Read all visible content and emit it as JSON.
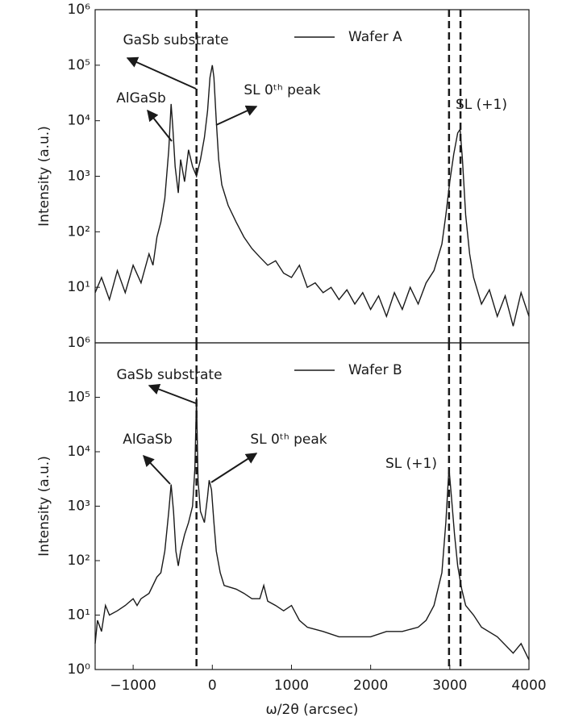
{
  "chart_data": [
    {
      "type": "line",
      "log_y": true,
      "ylabel": "Intensity (a.u.)",
      "xlim": [
        -1480,
        4000
      ],
      "ylim": [
        1,
        1000000
      ],
      "yticks": [
        {
          "value": 10,
          "label": "10¹"
        },
        {
          "value": 100,
          "label": "10²"
        },
        {
          "value": 1000,
          "label": "10³"
        },
        {
          "value": 10000,
          "label": "10⁴"
        },
        {
          "value": 100000,
          "label": "10⁵"
        },
        {
          "value": 1000000,
          "label": "10⁶"
        }
      ],
      "x": [
        -1480,
        -1400,
        -1300,
        -1200,
        -1100,
        -1000,
        -900,
        -800,
        -750,
        -700,
        -650,
        -600,
        -550,
        -520,
        -500,
        -470,
        -430,
        -400,
        -350,
        -300,
        -250,
        -200,
        -150,
        -100,
        -60,
        -30,
        0,
        20,
        50,
        80,
        120,
        200,
        300,
        400,
        500,
        600,
        700,
        800,
        900,
        1000,
        1100,
        1200,
        1300,
        1400,
        1500,
        1600,
        1700,
        1800,
        1900,
        2000,
        2100,
        2200,
        2300,
        2400,
        2500,
        2600,
        2700,
        2800,
        2900,
        2950,
        3000,
        3050,
        3100,
        3130,
        3160,
        3200,
        3250,
        3300,
        3400,
        3500,
        3600,
        3700,
        3800,
        3900,
        4000
      ],
      "series": [
        {
          "name": "Wafer A",
          "color": "#1a1a1a",
          "values": [
            8,
            15,
            6,
            20,
            8,
            25,
            12,
            40,
            25,
            80,
            150,
            400,
            3000,
            20000,
            8000,
            1500,
            500,
            2000,
            800,
            3000,
            1500,
            1000,
            2000,
            5000,
            15000,
            60000,
            100000,
            60000,
            10000,
            2000,
            700,
            300,
            150,
            80,
            50,
            35,
            25,
            30,
            18,
            15,
            25,
            10,
            12,
            8,
            10,
            6,
            9,
            5,
            8,
            4,
            7,
            3,
            8,
            4,
            10,
            5,
            12,
            20,
            60,
            200,
            800,
            2500,
            6000,
            7000,
            2000,
            200,
            40,
            15,
            5,
            9,
            3,
            7,
            2,
            8,
            3
          ]
        }
      ],
      "vlines": [
        -200,
        2990,
        3135
      ],
      "legend": "upper right",
      "annotations": [
        "GaSb substrate",
        "AlGaSb",
        "SL 0ᵗʰ peak",
        "SL (+1)"
      ]
    },
    {
      "type": "line",
      "log_y": true,
      "ylabel": "Intensity (a.u.)",
      "xlabel": "ω/2θ (arcsec)",
      "xlim": [
        -1480,
        4000
      ],
      "ylim": [
        1,
        1000000
      ],
      "xticks": [
        {
          "value": -1000,
          "label": "−1000"
        },
        0,
        1000,
        2000,
        3000,
        4000
      ],
      "yticks": [
        {
          "value": 1,
          "label": "10⁰"
        },
        {
          "value": 10,
          "label": "10¹"
        },
        {
          "value": 100,
          "label": "10²"
        },
        {
          "value": 1000,
          "label": "10³"
        },
        {
          "value": 10000,
          "label": "10⁴"
        },
        {
          "value": 100000,
          "label": "10⁵"
        },
        {
          "value": 1000000,
          "label": "10⁶"
        }
      ],
      "x": [
        -1480,
        -1450,
        -1400,
        -1350,
        -1300,
        -1200,
        -1100,
        -1000,
        -950,
        -900,
        -800,
        -700,
        -650,
        -600,
        -550,
        -520,
        -490,
        -460,
        -430,
        -400,
        -350,
        -300,
        -250,
        -220,
        -200,
        -180,
        -150,
        -100,
        -60,
        -40,
        -10,
        20,
        50,
        100,
        150,
        300,
        400,
        500,
        600,
        650,
        700,
        800,
        900,
        1000,
        1100,
        1200,
        1400,
        1600,
        1800,
        2000,
        2200,
        2400,
        2600,
        2700,
        2800,
        2900,
        2950,
        2990,
        3020,
        3060,
        3100,
        3150,
        3200,
        3300,
        3400,
        3600,
        3800,
        3900,
        4000
      ],
      "series": [
        {
          "name": "Wafer B",
          "color": "#1a1a1a",
          "values": [
            3,
            8,
            5,
            15,
            10,
            12,
            15,
            20,
            15,
            20,
            25,
            50,
            60,
            150,
            800,
            2500,
            800,
            150,
            80,
            150,
            300,
            500,
            1000,
            5000,
            100000,
            3000,
            800,
            500,
            1500,
            3000,
            2000,
            500,
            150,
            60,
            35,
            30,
            25,
            20,
            20,
            35,
            18,
            15,
            12,
            15,
            8,
            6,
            5,
            4,
            4,
            4,
            5,
            5,
            6,
            8,
            15,
            60,
            500,
            5000,
            1500,
            300,
            80,
            30,
            15,
            10,
            6,
            4,
            2,
            3,
            1.5
          ]
        }
      ],
      "vlines": [
        -200,
        2990,
        3135
      ],
      "legend": "upper right",
      "annotations": [
        "GaSb substrate",
        "AlGaSb",
        "SL 0ᵗʰ peak",
        "SL (+1)"
      ]
    }
  ]
}
